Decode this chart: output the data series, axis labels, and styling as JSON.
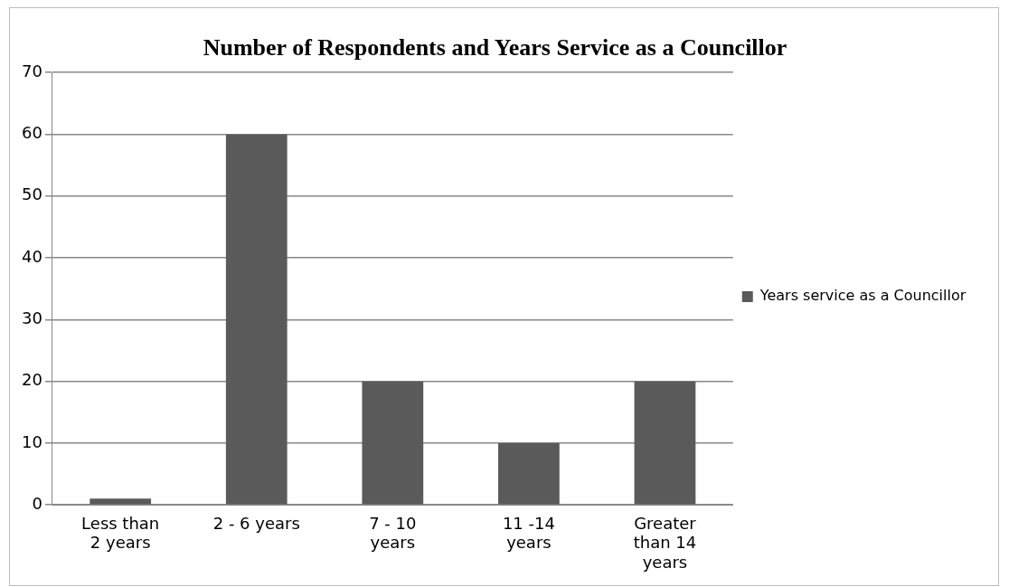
{
  "chart_data": {
    "type": "bar",
    "title": "Number of Respondents and Years Service as a Councillor",
    "categories": [
      "Less than 2 years",
      "2 - 6 years",
      "7 - 10 years",
      "11 -14 years",
      "Greater than 14 years"
    ],
    "series": [
      {
        "name": "Years service as a Councillor",
        "color": "#5a5a5a",
        "values": [
          1,
          60,
          20,
          10,
          20
        ]
      }
    ],
    "ylim": [
      0,
      70
    ],
    "yticks": [
      0,
      10,
      20,
      30,
      40,
      50,
      60,
      70
    ],
    "grid": "y",
    "legend": "right"
  }
}
